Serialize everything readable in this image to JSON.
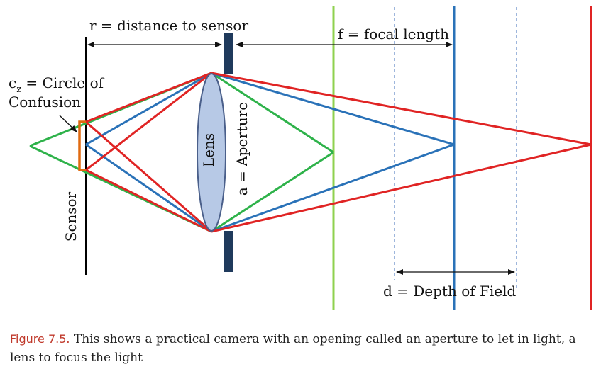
{
  "labels": {
    "r": "r = distance to sensor",
    "f": "f = focal length",
    "coc_c": "c",
    "coc_sub": "z",
    "coc_rest": " = Circle of",
    "coc_line2": "Confusion",
    "lens": "Lens",
    "aperture": "a = Aperture",
    "sensor": "Sensor",
    "dof": "d = Depth of Field"
  },
  "caption": {
    "figure": "Figure 7.5.",
    "text": "This shows a practical camera with an opening called an aperture to let in light, a lens to focus the light"
  },
  "colors": {
    "green": "#2eb24a",
    "blue": "#2a72b8",
    "red": "#e02424",
    "light_green": "#8fd14f",
    "aperture": "#1f3a5c",
    "lens_fill": "#b7c9e6",
    "lens_stroke": "#4a5f8a",
    "coc": "#e06a10",
    "caption_label": "#c0392b"
  }
}
